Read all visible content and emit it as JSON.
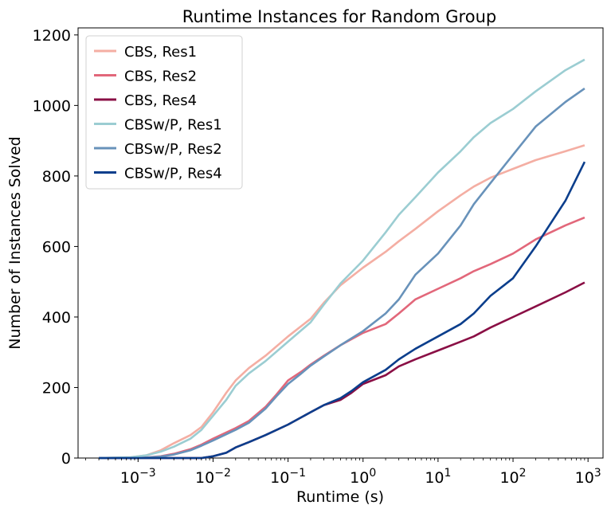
{
  "chart_data": {
    "type": "line",
    "title": "Runtime Instances for Random Group",
    "xlabel": "Runtime (s)",
    "ylabel": "Number of Instances Solved",
    "x_scale": "log",
    "xlim": [
      0.0001585,
      1585
    ],
    "ylim": [
      0,
      1220
    ],
    "x_ticks": [
      {
        "value": 0.001,
        "base": "10",
        "exp": "−3"
      },
      {
        "value": 0.01,
        "base": "10",
        "exp": "−2"
      },
      {
        "value": 0.1,
        "base": "10",
        "exp": "−1"
      },
      {
        "value": 1,
        "base": "10",
        "exp": "0"
      },
      {
        "value": 10,
        "base": "10",
        "exp": "1"
      },
      {
        "value": 100,
        "base": "10",
        "exp": "2"
      },
      {
        "value": 1000,
        "base": "10",
        "exp": "3"
      }
    ],
    "y_ticks": [
      {
        "value": 0,
        "label": "0"
      },
      {
        "value": 200,
        "label": "200"
      },
      {
        "value": 400,
        "label": "400"
      },
      {
        "value": 600,
        "label": "600"
      },
      {
        "value": 800,
        "label": "800"
      },
      {
        "value": 1000,
        "label": "1000"
      },
      {
        "value": 1200,
        "label": "1200"
      }
    ],
    "grid": false,
    "legend_position": "top-left",
    "series": [
      {
        "name": "CBS, Res1",
        "color": "#f4aea3",
        "points": [
          [
            0.0003,
            0
          ],
          [
            0.0008,
            2
          ],
          [
            0.0013,
            8
          ],
          [
            0.002,
            22
          ],
          [
            0.003,
            42
          ],
          [
            0.005,
            65
          ],
          [
            0.007,
            88
          ],
          [
            0.01,
            130
          ],
          [
            0.015,
            185
          ],
          [
            0.02,
            220
          ],
          [
            0.03,
            255
          ],
          [
            0.05,
            290
          ],
          [
            0.1,
            345
          ],
          [
            0.2,
            395
          ],
          [
            0.3,
            440
          ],
          [
            0.5,
            490
          ],
          [
            1,
            540
          ],
          [
            2,
            585
          ],
          [
            3,
            615
          ],
          [
            5,
            650
          ],
          [
            10,
            700
          ],
          [
            20,
            745
          ],
          [
            30,
            770
          ],
          [
            50,
            795
          ],
          [
            100,
            820
          ],
          [
            200,
            845
          ],
          [
            500,
            870
          ],
          [
            900,
            887
          ]
        ]
      },
      {
        "name": "CBS, Res2",
        "color": "#e2677a",
        "points": [
          [
            0.0003,
            0
          ],
          [
            0.001,
            0
          ],
          [
            0.002,
            5
          ],
          [
            0.003,
            12
          ],
          [
            0.005,
            25
          ],
          [
            0.007,
            38
          ],
          [
            0.01,
            55
          ],
          [
            0.02,
            85
          ],
          [
            0.03,
            105
          ],
          [
            0.05,
            145
          ],
          [
            0.07,
            180
          ],
          [
            0.1,
            220
          ],
          [
            0.15,
            245
          ],
          [
            0.2,
            265
          ],
          [
            0.3,
            290
          ],
          [
            0.5,
            320
          ],
          [
            1,
            355
          ],
          [
            2,
            380
          ],
          [
            3,
            410
          ],
          [
            5,
            450
          ],
          [
            10,
            480
          ],
          [
            20,
            510
          ],
          [
            30,
            530
          ],
          [
            50,
            550
          ],
          [
            100,
            580
          ],
          [
            200,
            620
          ],
          [
            500,
            660
          ],
          [
            900,
            682
          ]
        ]
      },
      {
        "name": "CBS, Res4",
        "color": "#8a0f45",
        "points": [
          [
            0.0003,
            0
          ],
          [
            0.007,
            0
          ],
          [
            0.01,
            5
          ],
          [
            0.015,
            15
          ],
          [
            0.02,
            30
          ],
          [
            0.03,
            45
          ],
          [
            0.05,
            65
          ],
          [
            0.1,
            95
          ],
          [
            0.2,
            130
          ],
          [
            0.3,
            150
          ],
          [
            0.5,
            165
          ],
          [
            0.7,
            185
          ],
          [
            1,
            210
          ],
          [
            2,
            235
          ],
          [
            3,
            260
          ],
          [
            5,
            280
          ],
          [
            10,
            305
          ],
          [
            20,
            330
          ],
          [
            30,
            345
          ],
          [
            50,
            370
          ],
          [
            100,
            400
          ],
          [
            200,
            430
          ],
          [
            500,
            470
          ],
          [
            900,
            498
          ]
        ]
      },
      {
        "name": "CBSw/P, Res1",
        "color": "#9bcdd2",
        "points": [
          [
            0.0003,
            0
          ],
          [
            0.0008,
            2
          ],
          [
            0.0013,
            8
          ],
          [
            0.002,
            18
          ],
          [
            0.003,
            32
          ],
          [
            0.005,
            55
          ],
          [
            0.007,
            80
          ],
          [
            0.01,
            120
          ],
          [
            0.015,
            165
          ],
          [
            0.02,
            205
          ],
          [
            0.03,
            240
          ],
          [
            0.05,
            275
          ],
          [
            0.1,
            330
          ],
          [
            0.2,
            385
          ],
          [
            0.3,
            435
          ],
          [
            0.5,
            495
          ],
          [
            1,
            560
          ],
          [
            2,
            640
          ],
          [
            3,
            690
          ],
          [
            5,
            740
          ],
          [
            10,
            810
          ],
          [
            20,
            870
          ],
          [
            30,
            910
          ],
          [
            50,
            950
          ],
          [
            100,
            990
          ],
          [
            200,
            1040
          ],
          [
            500,
            1100
          ],
          [
            900,
            1130
          ]
        ]
      },
      {
        "name": "CBSw/P, Res2",
        "color": "#6892ba",
        "points": [
          [
            0.0003,
            0
          ],
          [
            0.001,
            0
          ],
          [
            0.002,
            4
          ],
          [
            0.003,
            10
          ],
          [
            0.005,
            22
          ],
          [
            0.007,
            35
          ],
          [
            0.01,
            50
          ],
          [
            0.02,
            80
          ],
          [
            0.03,
            100
          ],
          [
            0.05,
            140
          ],
          [
            0.07,
            175
          ],
          [
            0.1,
            210
          ],
          [
            0.15,
            240
          ],
          [
            0.2,
            262
          ],
          [
            0.3,
            288
          ],
          [
            0.5,
            320
          ],
          [
            1,
            360
          ],
          [
            2,
            410
          ],
          [
            3,
            450
          ],
          [
            5,
            520
          ],
          [
            10,
            580
          ],
          [
            20,
            660
          ],
          [
            30,
            720
          ],
          [
            50,
            780
          ],
          [
            100,
            860
          ],
          [
            200,
            940
          ],
          [
            500,
            1010
          ],
          [
            900,
            1048
          ]
        ]
      },
      {
        "name": "CBSw/P, Res4",
        "color": "#0b3e8c",
        "points": [
          [
            0.0003,
            0
          ],
          [
            0.007,
            0
          ],
          [
            0.01,
            5
          ],
          [
            0.015,
            15
          ],
          [
            0.02,
            30
          ],
          [
            0.03,
            45
          ],
          [
            0.05,
            65
          ],
          [
            0.1,
            95
          ],
          [
            0.2,
            130
          ],
          [
            0.3,
            150
          ],
          [
            0.5,
            170
          ],
          [
            0.7,
            190
          ],
          [
            1,
            215
          ],
          [
            2,
            250
          ],
          [
            3,
            280
          ],
          [
            5,
            310
          ],
          [
            10,
            345
          ],
          [
            20,
            380
          ],
          [
            30,
            410
          ],
          [
            50,
            460
          ],
          [
            100,
            510
          ],
          [
            200,
            600
          ],
          [
            500,
            730
          ],
          [
            900,
            840
          ]
        ]
      }
    ]
  }
}
